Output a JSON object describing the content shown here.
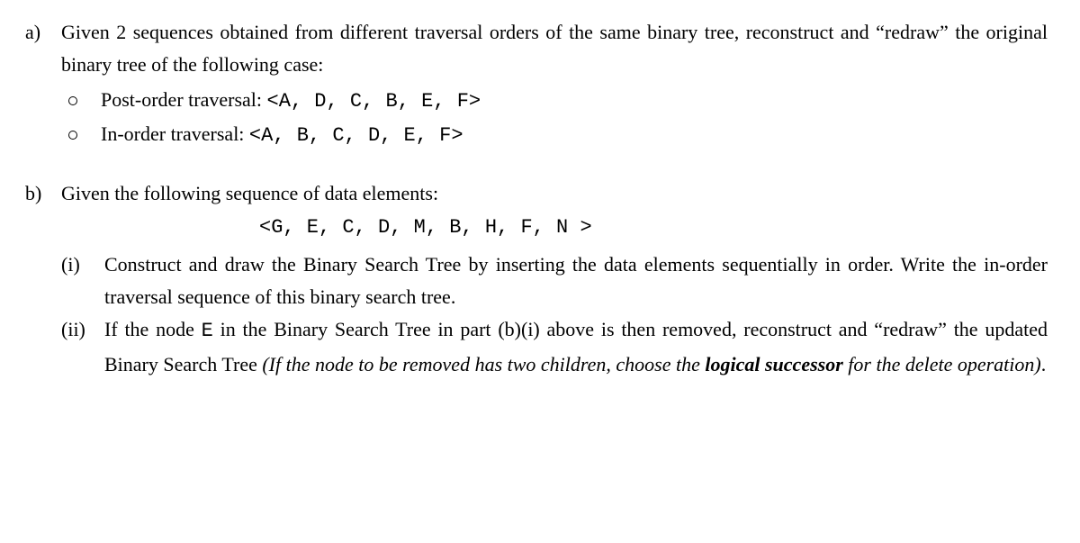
{
  "font": {
    "body_family": "Times New Roman",
    "mono_family": "Courier New",
    "size_pt": 22,
    "line_height": 1.65,
    "color": "#000000",
    "background": "#ffffff"
  },
  "a": {
    "label": "a)",
    "intro": "Given 2 sequences obtained from different traversal orders of the same binary tree, reconstruct and “redraw” the original binary tree of the following case:",
    "bullets": [
      {
        "label": "Post-order traversal: ",
        "seq": "<A, D, C, B, E, F>"
      },
      {
        "label": "In-order traversal: ",
        "seq": "<A, B, C, D, E, F>"
      }
    ]
  },
  "b": {
    "label": "b)",
    "intro": "Given the following sequence of data elements:",
    "seq": "<G, E, C, D, M, B, H, F, N >",
    "i": {
      "label": "(i)",
      "text": "Construct and draw the Binary Search Tree by inserting the data elements sequentially in order. Write the in-order traversal sequence of this binary search tree."
    },
    "ii": {
      "label": "(ii)",
      "before_mono": "If the node ",
      "mono": "E",
      "after_mono": " in the Binary Search Tree in part (b)(i) above is then removed, reconstruct and “redraw” the updated Binary Search Tree ",
      "italic_before_bold": "(If the node to be removed has two children, choose the ",
      "bold_italic": "logical successor",
      "italic_after_bold": " for the delete operation)",
      "tail": "."
    }
  }
}
